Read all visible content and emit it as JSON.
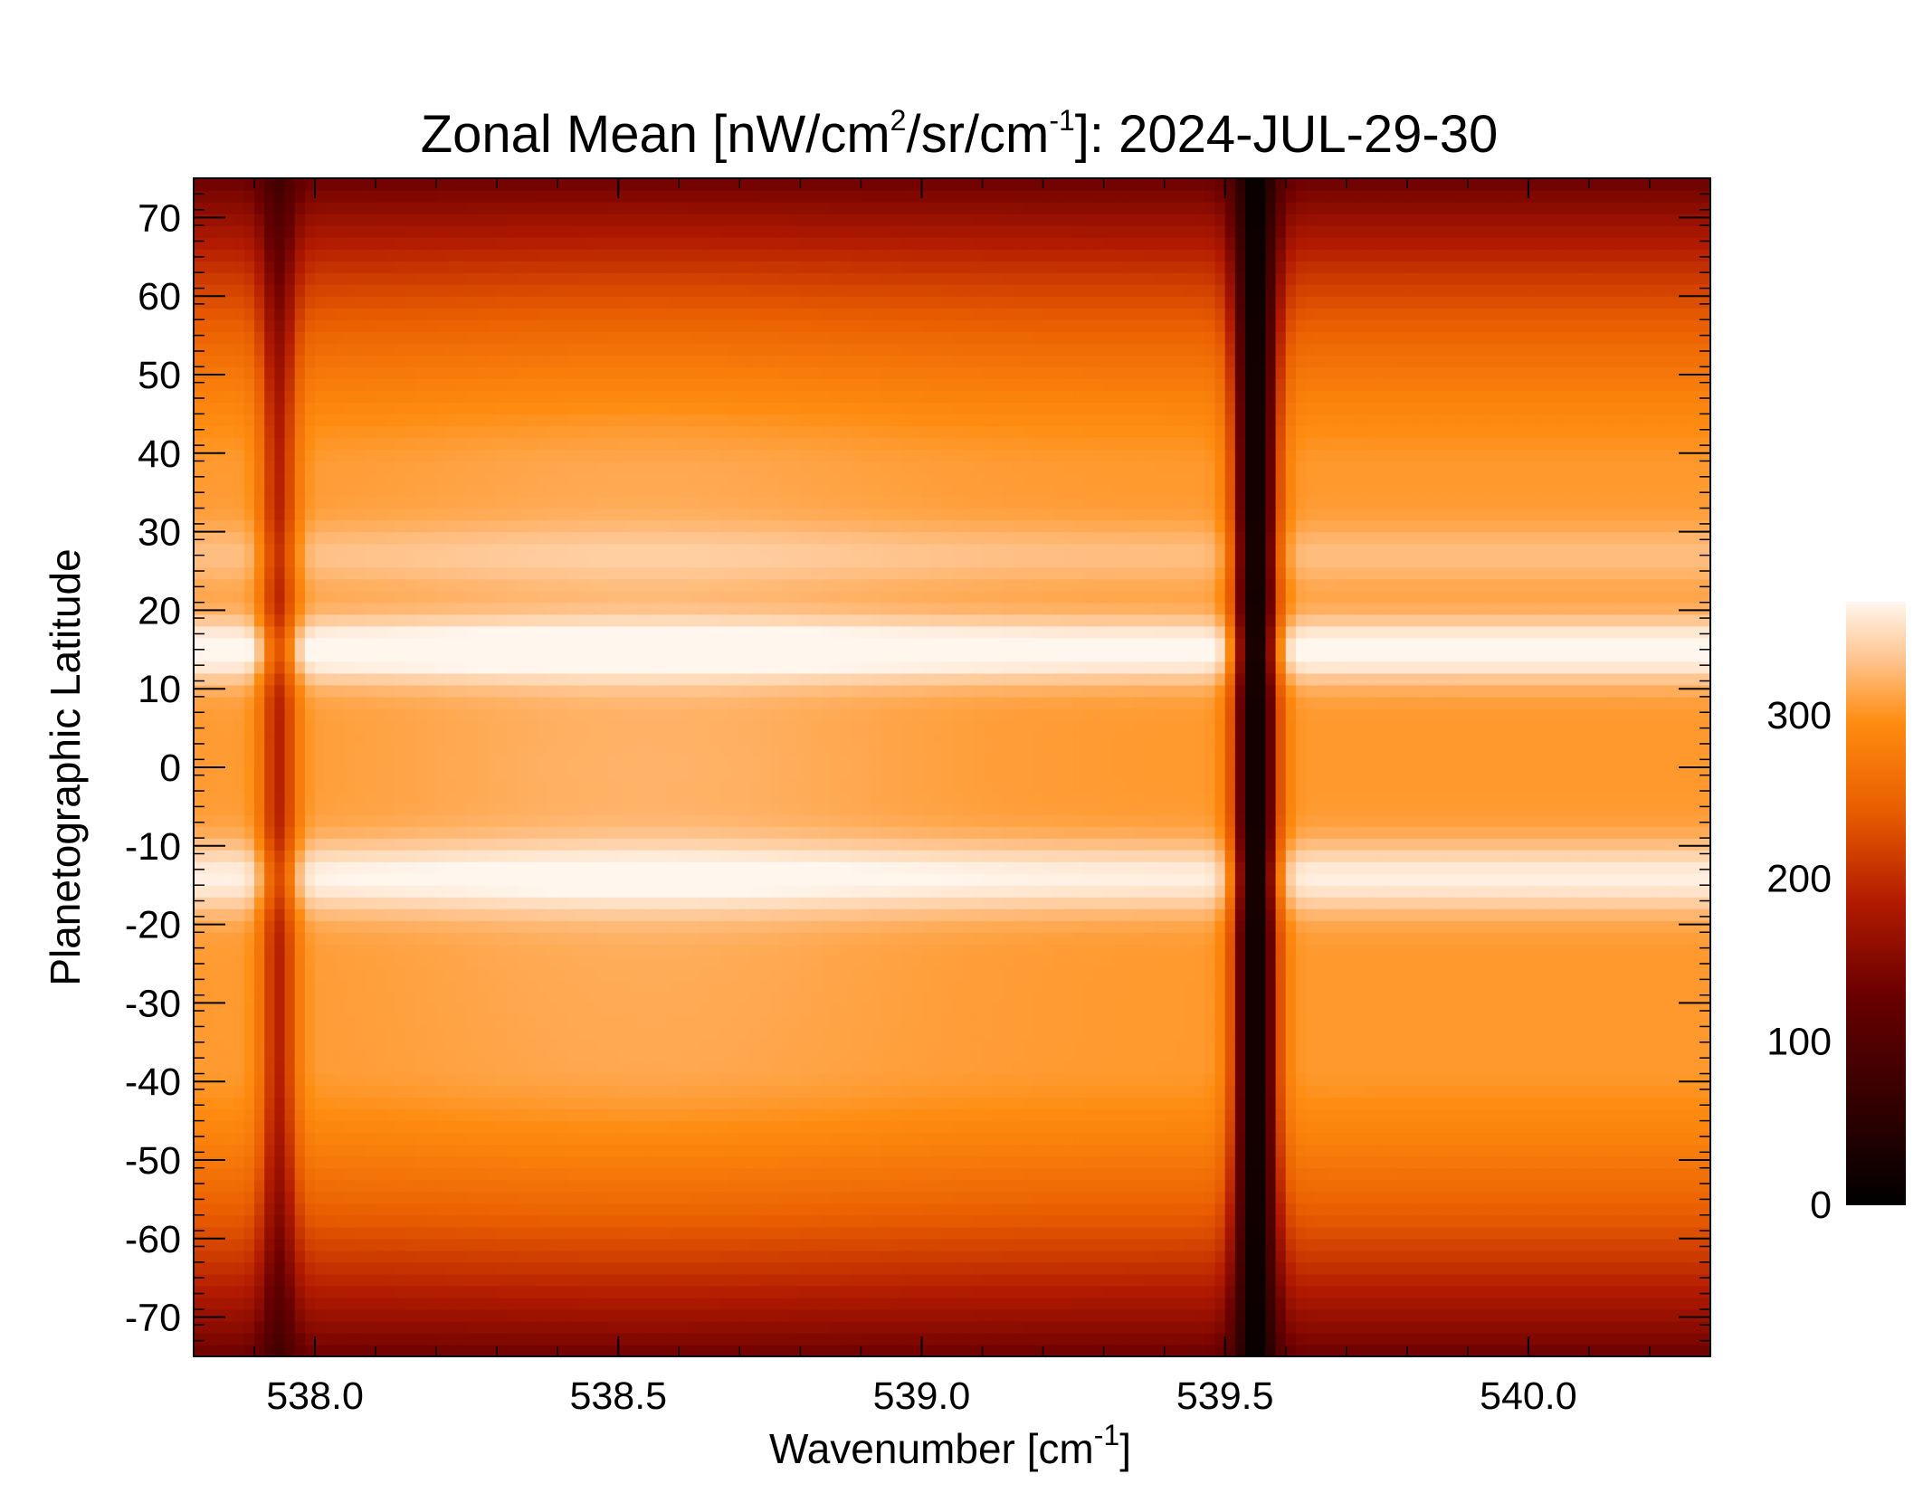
{
  "chart_data": {
    "type": "heatmap",
    "title": {
      "prefix": "Zonal Mean [nW/cm",
      "sup1": "2",
      "mid": "/sr/cm",
      "sup2": "-1",
      "suffix": "]: 2024-JUL-29-30"
    },
    "xlabel": {
      "prefix": "Wavenumber [cm",
      "sup": "-1",
      "suffix": "]"
    },
    "ylabel": "Planetographic Latitude",
    "xlim": [
      537.8,
      540.3
    ],
    "ylim": [
      -75,
      75
    ],
    "x_ticks": [
      {
        "value": 538.0,
        "label": "538.0"
      },
      {
        "value": 538.5,
        "label": "538.5"
      },
      {
        "value": 539.0,
        "label": "539.0"
      },
      {
        "value": 539.5,
        "label": "539.5"
      },
      {
        "value": 540.0,
        "label": "540.0"
      }
    ],
    "y_ticks": [
      {
        "value": 70,
        "label": "70"
      },
      {
        "value": 60,
        "label": "60"
      },
      {
        "value": 50,
        "label": "50"
      },
      {
        "value": 40,
        "label": "40"
      },
      {
        "value": 30,
        "label": "30"
      },
      {
        "value": 20,
        "label": "20"
      },
      {
        "value": 10,
        "label": "10"
      },
      {
        "value": 0,
        "label": "0"
      },
      {
        "value": -10,
        "label": "-10"
      },
      {
        "value": -20,
        "label": "-20"
      },
      {
        "value": -30,
        "label": "-30"
      },
      {
        "value": -40,
        "label": "-40"
      },
      {
        "value": -50,
        "label": "-50"
      },
      {
        "value": -60,
        "label": "-60"
      },
      {
        "value": -70,
        "label": "-70"
      }
    ],
    "colorbar": {
      "range": [
        0,
        370
      ],
      "ticks": [
        {
          "value": 0,
          "label": "0"
        },
        {
          "value": 100,
          "label": "100"
        },
        {
          "value": 200,
          "label": "200"
        },
        {
          "value": 300,
          "label": "300"
        }
      ],
      "colormap": "red-temperature"
    },
    "model": {
      "absorption_lines": [
        {
          "center": 537.94,
          "width": 0.03,
          "depth": 0.38
        },
        {
          "center": 539.55,
          "width": 0.035,
          "depth": 0.97
        }
      ],
      "latitude_bands": [
        {
          "center": 15,
          "width": 4,
          "amp": 75
        },
        {
          "center": -14,
          "width": 4.5,
          "amp": 60
        },
        {
          "center": 27,
          "width": 4,
          "amp": 25
        }
      ]
    }
  }
}
